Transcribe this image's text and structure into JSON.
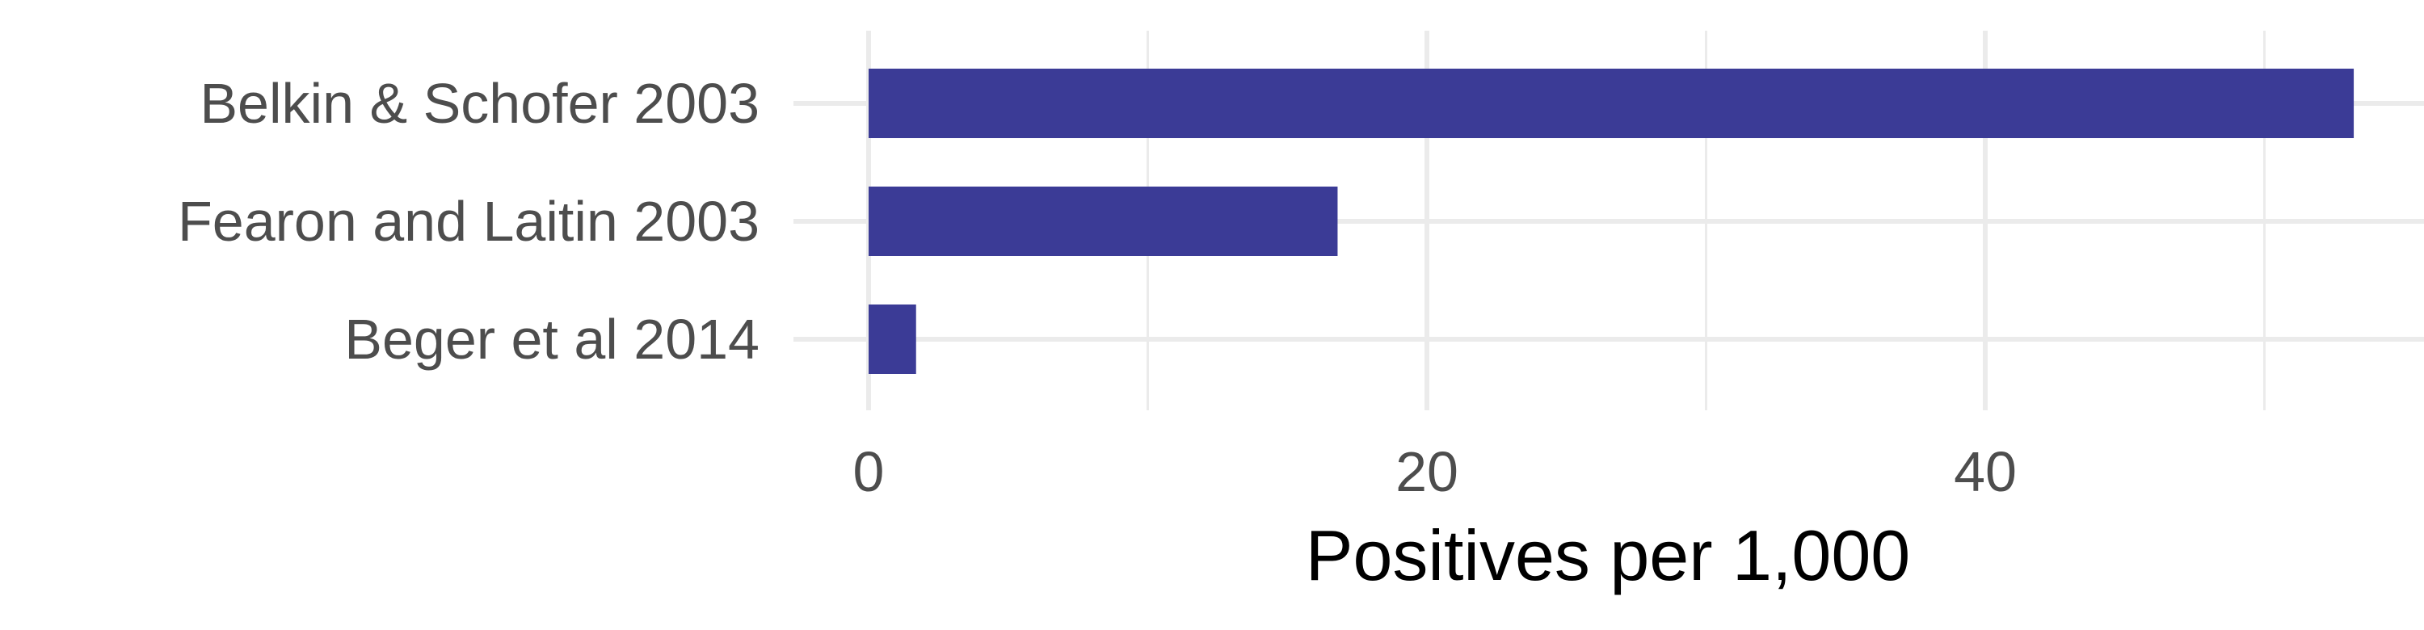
{
  "chart_data": {
    "type": "bar",
    "orientation": "horizontal",
    "title": "",
    "xlabel": "Positives per 1,000",
    "ylabel": "",
    "categories": [
      "Belkin & Schofer 2003",
      "Fearon and Laitin 2003",
      "Beger et al 2014"
    ],
    "values": [
      53.2,
      16.8,
      1.7
    ],
    "xlim": [
      0,
      55.6
    ],
    "x_ticks": [
      0,
      20,
      40
    ],
    "x_tick_labels": [
      "0",
      "20",
      "40"
    ],
    "grid": true,
    "legend": "none",
    "colors": {
      "bar": "#3b3b96",
      "grid": "#ebebeb",
      "tick_text": "#4d4d4d",
      "axis_title": "#000000"
    }
  }
}
